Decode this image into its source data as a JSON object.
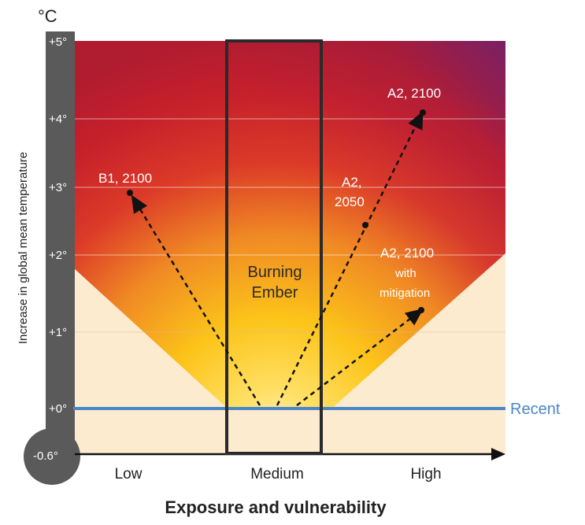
{
  "unit_label": "°C",
  "y_axis_title": "Increase in global mean temperature",
  "y_ticks": [
    "+5°",
    "+4°",
    "+3°",
    "+2°",
    "+1°",
    "+0°",
    "-0.6°"
  ],
  "x_categories": [
    "Low",
    "Medium",
    "High"
  ],
  "x_axis_title": "Exposure and vulnerability",
  "ember_label": [
    "Burning",
    "Ember"
  ],
  "recent_label": "Recent",
  "points": {
    "b1_2100": "B1, 2100",
    "a2_2050": [
      "A2,",
      "2050"
    ],
    "a2_2100": "A2, 2100",
    "a2_2100_mitigation": [
      "A2, 2100",
      "with",
      "mitigation"
    ]
  },
  "colors": {
    "recent_line": "#4a86c8",
    "ember_box": "#2a2a2a",
    "thermometer": "#5a5a5a",
    "low_risk": "#fdebd0",
    "high_risk": "#c8202a"
  }
}
